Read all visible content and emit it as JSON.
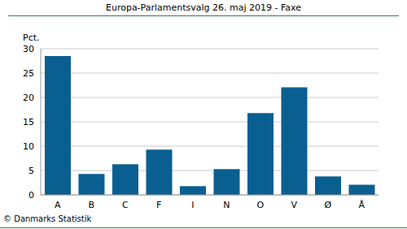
{
  "chart_data": {
    "type": "bar",
    "title": "Europa-Parlamentsvalg 26. maj 2019 - Faxe",
    "ylabel": "Pct.",
    "footer": "© Danmarks Statistik",
    "categories": [
      "A",
      "B",
      "C",
      "F",
      "I",
      "N",
      "O",
      "V",
      "Ø",
      "Å"
    ],
    "values": [
      28.5,
      4.3,
      6.3,
      9.3,
      1.8,
      5.3,
      16.8,
      22.1,
      3.8,
      2.1
    ],
    "color": "#0a5f91",
    "ylim": [
      0,
      30
    ],
    "yticks": [
      0,
      5,
      10,
      15,
      20,
      25,
      30
    ],
    "grid": true
  }
}
